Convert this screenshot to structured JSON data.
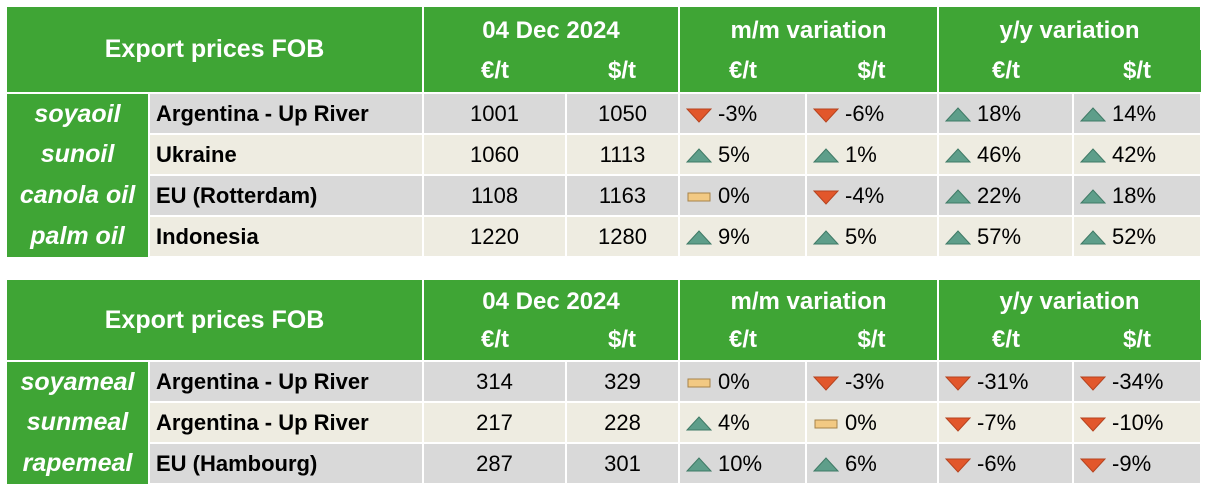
{
  "tables": [
    {
      "header": {
        "title": "Export prices FOB",
        "groups": [
          {
            "label": "04 Dec 2024",
            "units": [
              "€/t",
              "$/t"
            ]
          },
          {
            "label": "m/m variation",
            "units": [
              "€/t",
              "$/t"
            ]
          },
          {
            "label": "y/y variation",
            "units": [
              "€/t",
              "$/t"
            ]
          }
        ]
      },
      "rows": [
        {
          "product": "soyaoil",
          "origin": "Argentina - Up River",
          "cells": [
            "1001",
            "1050",
            "-3%",
            "-6%",
            "18%",
            "14%"
          ]
        },
        {
          "product": "sunoil",
          "origin": "Ukraine",
          "cells": [
            "1060",
            "1113",
            "5%",
            "1%",
            "46%",
            "42%"
          ]
        },
        {
          "product": "canola oil",
          "origin": "EU (Rotterdam)",
          "cells": [
            "1108",
            "1163",
            "0%",
            "-4%",
            "22%",
            "18%"
          ]
        },
        {
          "product": "palm oil",
          "origin": "Indonesia",
          "cells": [
            "1220",
            "1280",
            "9%",
            "5%",
            "57%",
            "52%"
          ]
        }
      ]
    },
    {
      "header": {
        "title": "Export prices FOB",
        "groups": [
          {
            "label": "04 Dec 2024",
            "units": [
              "€/t",
              "$/t"
            ]
          },
          {
            "label": "m/m variation",
            "units": [
              "€/t",
              "$/t"
            ]
          },
          {
            "label": "y/y variation",
            "units": [
              "€/t",
              "$/t"
            ]
          }
        ]
      },
      "rows": [
        {
          "product": "soyameal",
          "origin": "Argentina - Up River",
          "cells": [
            "314",
            "329",
            "0%",
            "-3%",
            "-31%",
            "-34%"
          ]
        },
        {
          "product": "sunmeal",
          "origin": "Argentina - Up River",
          "cells": [
            "217",
            "228",
            "4%",
            "0%",
            "-7%",
            "-10%"
          ]
        },
        {
          "product": "rapemeal",
          "origin": "EU (Hambourg)",
          "cells": [
            "287",
            "301",
            "10%",
            "6%",
            "-6%",
            "-9%"
          ]
        }
      ]
    }
  ]
}
